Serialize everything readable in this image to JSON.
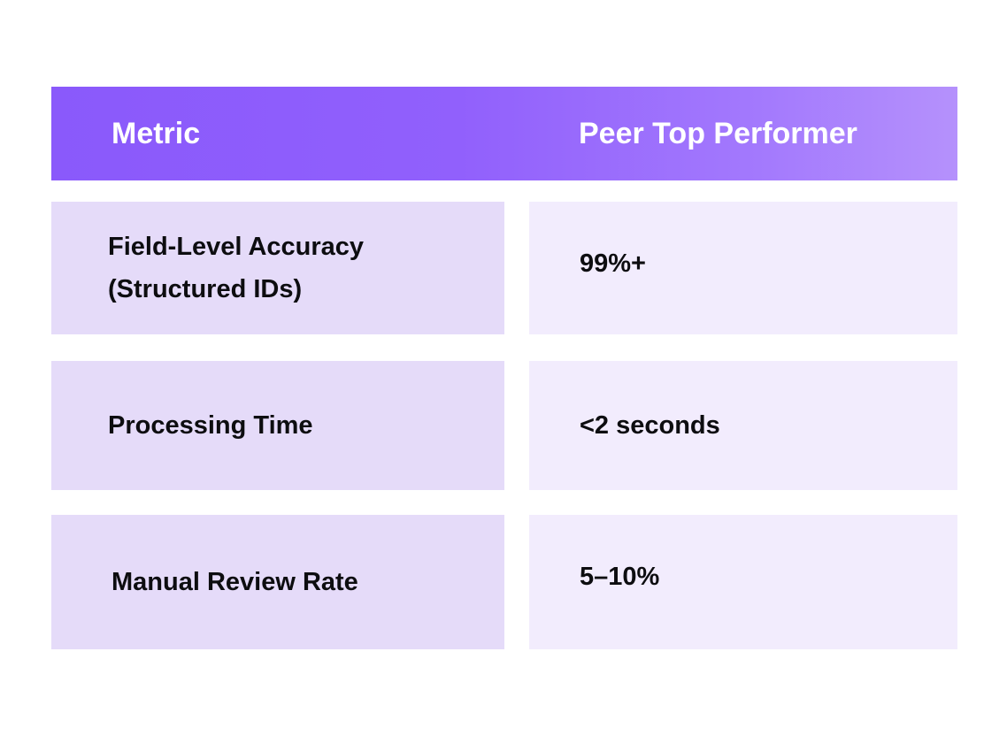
{
  "table": {
    "headers": {
      "metric": "Metric",
      "peer_top_performer": "Peer Top Performer"
    },
    "rows": [
      {
        "metric_line1": "Field-Level Accuracy",
        "metric_line2": "(Structured IDs)",
        "value": "99%+"
      },
      {
        "metric_line1": "Processing Time",
        "value": "<2 seconds"
      },
      {
        "metric_line1": "Manual Review Rate",
        "value": "5–10%"
      }
    ]
  },
  "colors": {
    "header_gradient_start": "#8a59fb",
    "header_gradient_end": "#b591fc",
    "metric_cell_bg": "#e5dbf9",
    "value_cell_bg": "#f2ecfd"
  }
}
